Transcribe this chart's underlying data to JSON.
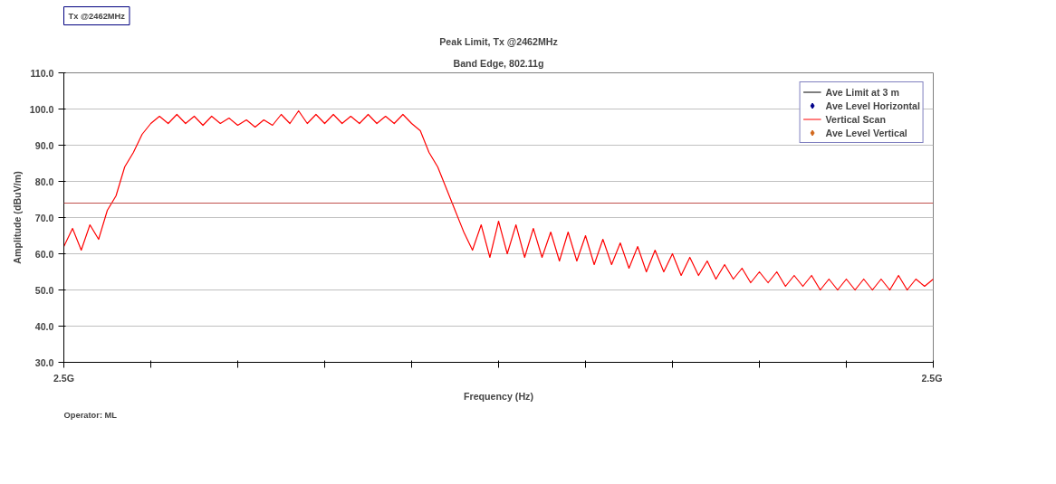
{
  "chart_data": {
    "type": "line",
    "title": "Peak Limit, Tx @2462MHz",
    "subtitle": "Band Edge, 802.11g",
    "xlabel": "Frequency (Hz)",
    "ylabel": "Amplitude (dBuV/m)",
    "categories": [
      null,
      null,
      null,
      null,
      null,
      null,
      null,
      null,
      null,
      null,
      null,
      null,
      null,
      null,
      null,
      null,
      null,
      null,
      null,
      null,
      null,
      null,
      null,
      null,
      null,
      null,
      null,
      null,
      null,
      null,
      null,
      null,
      null,
      null,
      null,
      null,
      null,
      null,
      null,
      null,
      null,
      null,
      null,
      null,
      null,
      null,
      null,
      null,
      null,
      null,
      null,
      null,
      null,
      null,
      null,
      null,
      null,
      null,
      null,
      null,
      null,
      null,
      null,
      null,
      null,
      null,
      null,
      null,
      null,
      null,
      null,
      null,
      null,
      null,
      null,
      null,
      null,
      null,
      null,
      null,
      null,
      null,
      null,
      null,
      null,
      null,
      null,
      null,
      null,
      null,
      null,
      null,
      null,
      null,
      null,
      null,
      null,
      null,
      null,
      null,
      null
    ],
    "ylim": [
      30,
      110
    ],
    "yticks": [
      {
        "value": 30,
        "label": "30.0"
      },
      {
        "value": 40,
        "label": "40.0"
      },
      {
        "value": 50,
        "label": "50.0"
      },
      {
        "value": 60,
        "label": "60.0"
      },
      {
        "value": 70,
        "label": "70.0"
      },
      {
        "value": 80,
        "label": "80.0"
      },
      {
        "value": 90,
        "label": "90.0"
      },
      {
        "value": 100,
        "label": "100.0"
      },
      {
        "value": 110,
        "label": "110.0"
      }
    ],
    "grid": "y",
    "legend": "top right",
    "ref_lines": [
      {
        "axis": "y",
        "value": 74,
        "label": null,
        "color": "#c0504d"
      }
    ],
    "annotations": [
      "Tx @2462MHz",
      "Operator: ML",
      "2.5G",
      "2.5G"
    ],
    "series": [
      {
        "name": "Ave Limit at 3 m",
        "color": "#000000",
        "values": [
          null,
          null,
          null,
          null,
          null,
          null,
          null,
          null,
          null,
          null,
          null,
          null,
          null,
          null,
          null,
          null,
          null,
          null,
          null,
          null,
          null,
          null,
          null,
          null,
          null,
          null,
          null,
          null,
          null,
          null,
          null,
          null,
          null,
          null,
          null,
          null,
          null,
          null,
          null,
          null,
          null,
          null,
          null,
          null,
          null,
          null,
          null,
          null,
          null,
          null,
          null,
          null,
          null,
          null,
          null,
          null,
          null,
          null,
          null,
          null,
          null,
          null,
          null,
          null,
          null,
          null,
          null,
          null,
          null,
          null,
          null,
          null,
          null,
          null,
          null,
          null,
          null,
          null,
          null,
          null,
          null,
          null,
          null,
          null,
          null,
          null,
          null,
          null,
          null,
          null,
          null,
          null,
          null,
          null,
          null,
          null,
          null,
          null,
          null,
          null,
          null
        ]
      },
      {
        "name": "Ave Level Horizontal",
        "type": "scatter",
        "marker": "diamond",
        "color": "#00008b",
        "values": [
          null,
          null,
          null,
          null,
          null,
          null,
          null,
          null,
          null,
          null,
          null,
          null,
          null,
          null,
          null,
          null,
          null,
          null,
          null,
          null,
          null,
          null,
          null,
          null,
          null,
          null,
          null,
          null,
          null,
          null,
          null,
          null,
          null,
          null,
          null,
          null,
          null,
          null,
          null,
          null,
          null,
          null,
          null,
          null,
          null,
          null,
          null,
          null,
          null,
          null,
          null,
          null,
          null,
          null,
          null,
          null,
          null,
          null,
          null,
          null,
          null,
          null,
          null,
          null,
          null,
          null,
          null,
          null,
          null,
          null,
          null,
          null,
          null,
          null,
          null,
          null,
          null,
          null,
          null,
          null,
          null,
          null,
          null,
          null,
          null,
          null,
          null,
          null,
          null,
          null,
          null,
          null,
          null,
          null,
          null,
          null,
          null,
          null,
          null,
          null,
          null
        ]
      },
      {
        "name": "Vertical Scan",
        "color": "#ff0000",
        "values": [
          62,
          67,
          61,
          68,
          64,
          72,
          76,
          84,
          88,
          93,
          96,
          98,
          96,
          98.5,
          96,
          98,
          95.5,
          98,
          96,
          97.5,
          95.5,
          97,
          95,
          97,
          95.5,
          98.5,
          96,
          99.5,
          96,
          98.5,
          96,
          98.5,
          96,
          98,
          96,
          98.5,
          96,
          98,
          96,
          98.5,
          96,
          94,
          88,
          84,
          78,
          72,
          66,
          61,
          68,
          59,
          69,
          60,
          68,
          59,
          67,
          59,
          66,
          58,
          66,
          58,
          65,
          57,
          64,
          57,
          63,
          56,
          62,
          55,
          61,
          55,
          60,
          54,
          59,
          54,
          58,
          53,
          57,
          53,
          56,
          52,
          55,
          52,
          55,
          51,
          54,
          51,
          54,
          50,
          53,
          50,
          53,
          50,
          53,
          50,
          53,
          50,
          54,
          50,
          53,
          51,
          53
        ]
      },
      {
        "name": "Ave Level Vertical",
        "type": "scatter",
        "marker": "diamond",
        "color": "#d2691e",
        "values": [
          null,
          null,
          null,
          null,
          null,
          null,
          null,
          null,
          null,
          null,
          null,
          null,
          null,
          null,
          null,
          null,
          null,
          null,
          null,
          null,
          null,
          null,
          null,
          null,
          null,
          null,
          null,
          null,
          null,
          null,
          null,
          null,
          null,
          null,
          null,
          null,
          null,
          null,
          null,
          null,
          null,
          null,
          null,
          null,
          null,
          null,
          null,
          null,
          null,
          null,
          null,
          null,
          null,
          null,
          null,
          null,
          null,
          null,
          null,
          null,
          null,
          null,
          null,
          null,
          null,
          null,
          null,
          null,
          null,
          null,
          null,
          null,
          null,
          null,
          null,
          null,
          null,
          null,
          null,
          null,
          null,
          null,
          null,
          null,
          null,
          null,
          null,
          null,
          null,
          null,
          null,
          null,
          null,
          null,
          null,
          null,
          null,
          null,
          null,
          null,
          null
        ]
      }
    ]
  }
}
